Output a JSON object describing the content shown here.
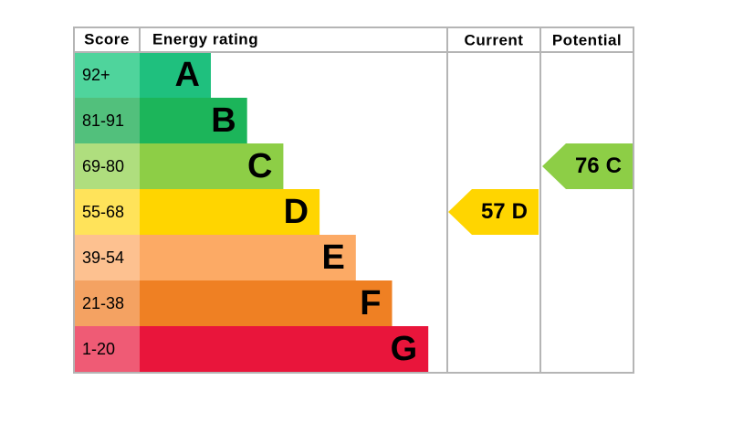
{
  "headers": [
    "Score",
    "Energy rating",
    "Current",
    "Potential"
  ],
  "bands": [
    {
      "score": "92+",
      "rating": "A",
      "color": "#1fc07e",
      "score_color": "#4fd49c"
    },
    {
      "score": "81-91",
      "rating": "B",
      "color": "#1cb55a",
      "score_color": "#52c07c"
    },
    {
      "score": "69-80",
      "rating": "C",
      "color": "#8dce46",
      "score_color": "#afde7e"
    },
    {
      "score": "55-68",
      "rating": "D",
      "color": "#ffd500",
      "score_color": "#ffe35a"
    },
    {
      "score": "39-54",
      "rating": "E",
      "color": "#fcaa65",
      "score_color": "#fdc190"
    },
    {
      "score": "21-38",
      "rating": "F",
      "color": "#ef8023",
      "score_color": "#f4a262"
    },
    {
      "score": "1-20",
      "rating": "G",
      "color": "#e9153b",
      "score_color": "#ef5b75"
    }
  ],
  "current": {
    "score": 57,
    "rating": "D"
  },
  "potential": {
    "score": 76,
    "rating": "C"
  }
}
